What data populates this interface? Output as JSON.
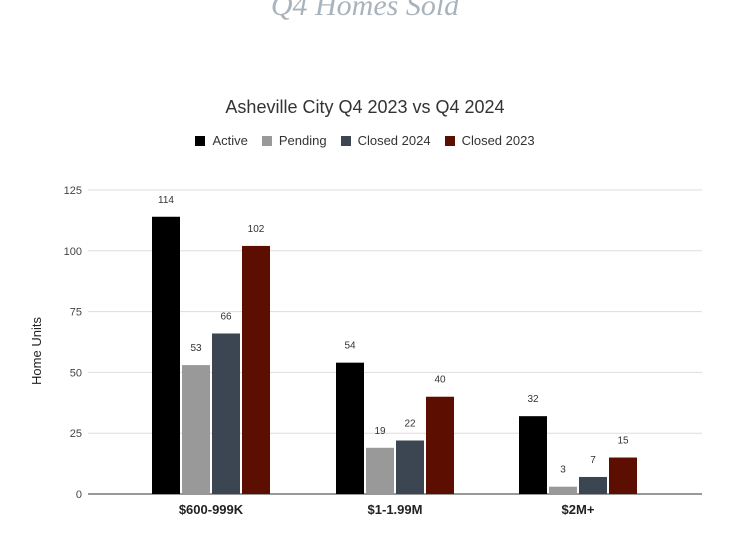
{
  "page": {
    "heading": "Q4 Homes Sold"
  },
  "chart_data": {
    "type": "bar",
    "title": "Asheville City Q4 2023 vs Q4 2024",
    "xlabel": "",
    "ylabel": "Home Units",
    "ylim": [
      0,
      125
    ],
    "yticks": [
      0,
      25,
      50,
      75,
      100,
      125
    ],
    "grid": true,
    "legend_position": "top",
    "categories": [
      "$600-999K",
      "$1-1.99M",
      "$2M+"
    ],
    "series": [
      {
        "name": "Active",
        "color": "#000000",
        "values": [
          114,
          54,
          32
        ]
      },
      {
        "name": "Pending",
        "color": "#999999",
        "values": [
          53,
          19,
          3
        ]
      },
      {
        "name": "Closed 2024",
        "color": "#3c4652",
        "values": [
          66,
          22,
          7
        ]
      },
      {
        "name": "Closed 2023",
        "color": "#5c0f00",
        "values": [
          102,
          40,
          15
        ]
      }
    ]
  }
}
